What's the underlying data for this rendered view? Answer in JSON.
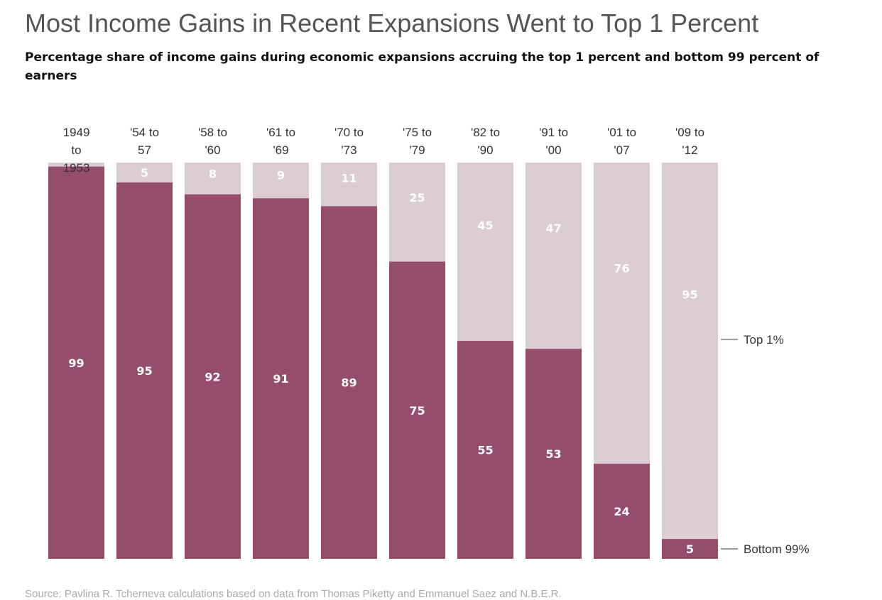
{
  "chart_data": {
    "type": "bar",
    "stacked": true,
    "title": "Most Income Gains in Recent Expansions Went to Top 1 Percent",
    "subtitle": "Percentage share of income gains during economic expansions accruing the top 1 percent and bottom 99 percent of earners",
    "categories": [
      [
        "1949",
        "to",
        "1953"
      ],
      [
        "'54 to",
        "57"
      ],
      [
        "'58 to",
        "'60"
      ],
      [
        "'61 to",
        "'69"
      ],
      [
        "'70 to",
        "'73"
      ],
      [
        "'75 to",
        "'79"
      ],
      [
        "'82 to",
        "'90"
      ],
      [
        "'91 to",
        "'00"
      ],
      [
        "'01 to",
        "'07"
      ],
      [
        "'09 to",
        "'12"
      ]
    ],
    "series": [
      {
        "name": "Bottom 99%",
        "values": [
          99,
          95,
          92,
          91,
          89,
          75,
          55,
          53,
          24,
          5
        ]
      },
      {
        "name": "Top 1%",
        "values": [
          1,
          5,
          8,
          9,
          11,
          25,
          45,
          47,
          76,
          95
        ]
      }
    ],
    "top_labels": [
      "",
      "5",
      "8",
      "9",
      "11",
      "25",
      "45",
      "47",
      "76",
      "95"
    ],
    "ylim": [
      0,
      100
    ],
    "xlabel": "",
    "ylabel": "",
    "legend": [
      "Top 1%",
      "Bottom 99%"
    ],
    "colors": {
      "bottom": "#944e6a",
      "top": "#dcccd4",
      "top_text": "#ffffff",
      "bottom_text": "#ffffff",
      "leader": "#999999"
    }
  },
  "source": "Source: Pavlina R. Tcherneva calculations based on data from Thomas Piketty and Emmanuel Saez and N.B.E.R."
}
